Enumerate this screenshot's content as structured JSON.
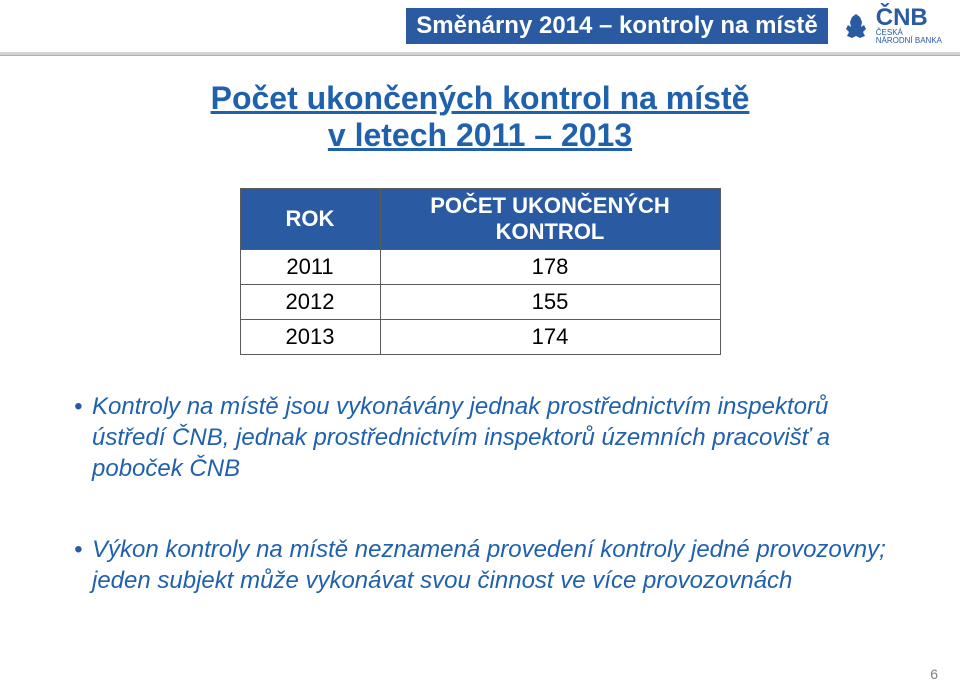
{
  "header": {
    "title": "Směnárny 2014 – kontroly na místě",
    "title_color": "#ffffff",
    "title_fontsize": 24,
    "title_weight": "bold",
    "bg_color": "#2a5aa2",
    "logo_main": "ČNB",
    "logo_sub1": "ČESKÁ",
    "logo_sub2": "NÁRODNÍ BANKA",
    "logo_color": "#2a5aa2",
    "logo_main_fontsize": 24,
    "logo_sub_fontsize": 8
  },
  "heading": {
    "line1": "Počet ukončených kontrol na místě",
    "line2": "v letech 2011 – 2013",
    "color": "#2061ae",
    "fontsize": 32,
    "weight": "bold"
  },
  "table": {
    "header_bg": "#2a5aa2",
    "header_color": "#ffffff",
    "border_color": "#5b5b5b",
    "fontsize": 22,
    "col1_width": 140,
    "col2_width": 340,
    "columns": [
      "ROK",
      "POČET UKONČENÝCH KONTROL"
    ],
    "rows": [
      [
        "2011",
        "178"
      ],
      [
        "2012",
        "155"
      ],
      [
        "2013",
        "174"
      ]
    ]
  },
  "bullets": {
    "color": "#2061ae",
    "bullet_color": "#2a5aa2",
    "fontsize": 24,
    "style": "italic",
    "items": [
      "Kontroly na místě jsou vykonávány jednak prostřednictvím inspektorů ústředí ČNB, jednak prostřednictvím inspektorů územních pracovišť a poboček ČNB",
      "Výkon kontroly na místě neznamená provedení kontroly jedné provozovny; jeden subjekt může vykonávat svou činnost ve více provozovnách"
    ]
  },
  "page_number": {
    "value": "6",
    "color": "#808080",
    "fontsize": 14
  }
}
